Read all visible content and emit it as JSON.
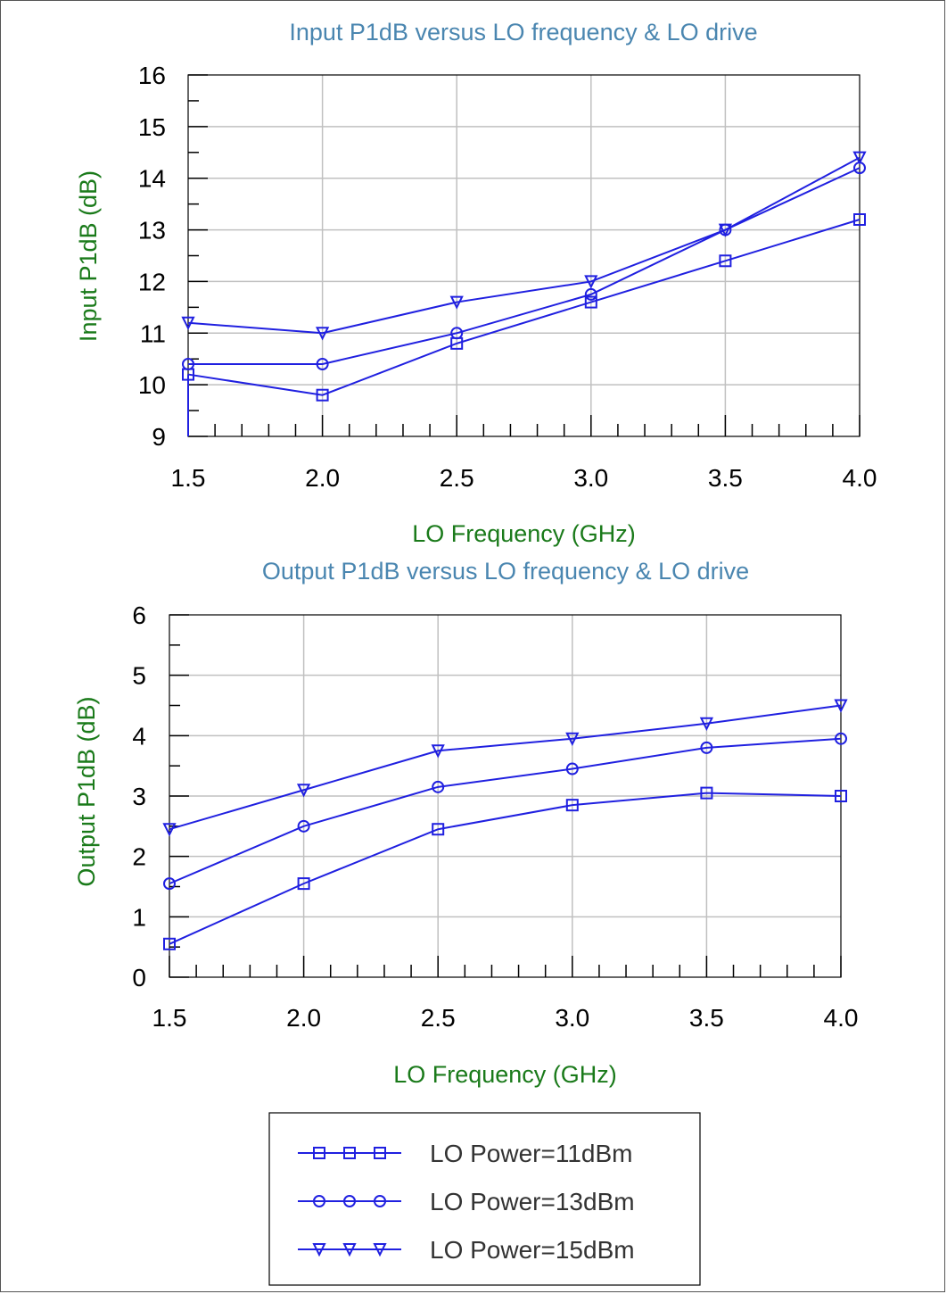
{
  "colors": {
    "series": "#2020e0",
    "title": "#4a86b0",
    "axis_label": "#1a7a1a",
    "grid": "#c0c0c0",
    "frame": "#000000"
  },
  "chart_data": [
    {
      "type": "line",
      "title": "Input P1dB versus LO frequency & LO drive",
      "xlabel": "LO Frequency (GHz)",
      "ylabel": "Input P1dB (dB)",
      "xlim": [
        1.5,
        4.0
      ],
      "ylim": [
        9,
        16
      ],
      "x_ticks": [
        "1.5",
        "2.0",
        "2.5",
        "3.0",
        "3.5",
        "4.0"
      ],
      "y_ticks": [
        "9",
        "10",
        "11",
        "12",
        "13",
        "14",
        "15",
        "16"
      ],
      "grid": true,
      "x": [
        1.5,
        2.0,
        2.5,
        3.0,
        3.5,
        4.0
      ],
      "series": [
        {
          "name": "LO Power=11dBm",
          "marker": "square",
          "values": [
            10.2,
            9.8,
            10.8,
            11.6,
            12.4,
            13.2
          ]
        },
        {
          "name": "LO Power=13dBm",
          "marker": "circle",
          "values": [
            10.4,
            10.4,
            11.0,
            11.75,
            13.0,
            14.2
          ]
        },
        {
          "name": "LO Power=15dBm",
          "marker": "triangle",
          "values": [
            11.2,
            11.0,
            11.6,
            12.0,
            13.0,
            14.4
          ]
        }
      ]
    },
    {
      "type": "line",
      "title": "Output P1dB versus LO frequency & LO drive",
      "xlabel": "LO Frequency (GHz)",
      "ylabel": "Output P1dB (dB)",
      "xlim": [
        1.5,
        4.0
      ],
      "ylim": [
        0,
        6
      ],
      "x_ticks": [
        "1.5",
        "2.0",
        "2.5",
        "3.0",
        "3.5",
        "4.0"
      ],
      "y_ticks": [
        "0",
        "1",
        "2",
        "3",
        "4",
        "5",
        "6"
      ],
      "grid": true,
      "x": [
        1.5,
        2.0,
        2.5,
        3.0,
        3.5,
        4.0
      ],
      "series": [
        {
          "name": "LO Power=11dBm",
          "marker": "square",
          "values": [
            0.55,
            1.55,
            2.45,
            2.85,
            3.05,
            3.0
          ]
        },
        {
          "name": "LO Power=13dBm",
          "marker": "circle",
          "values": [
            1.55,
            2.5,
            3.15,
            3.45,
            3.8,
            3.95
          ]
        },
        {
          "name": "LO Power=15dBm",
          "marker": "triangle",
          "values": [
            2.45,
            3.1,
            3.75,
            3.95,
            4.2,
            4.5
          ]
        }
      ]
    }
  ],
  "legend": {
    "placement": "bottom",
    "entries": [
      {
        "label": "LO Power=11dBm",
        "marker": "square"
      },
      {
        "label": "LO Power=13dBm",
        "marker": "circle"
      },
      {
        "label": "LO Power=15dBm",
        "marker": "triangle"
      }
    ]
  }
}
